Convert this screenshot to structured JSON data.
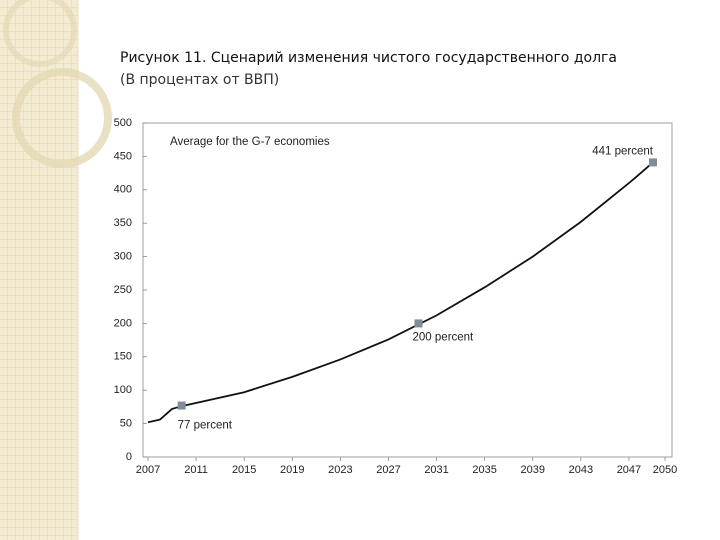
{
  "chart_data": {
    "type": "line",
    "title": "Рисунок 11. Сценарий изменения чистого государственного долга",
    "subtitle": "(В процентах от ВВП)",
    "annotation": "Average for the G-7 economies",
    "x": [
      2007,
      2008,
      2009,
      2010,
      2015,
      2019,
      2023,
      2027,
      2031,
      2035,
      2039,
      2043,
      2047,
      2049
    ],
    "values": [
      52,
      56,
      72,
      77,
      97,
      120,
      146,
      176,
      212,
      254,
      300,
      352,
      410,
      441
    ],
    "color": "#111111",
    "markers": {
      "x": [
        2009.8,
        2029.5,
        2049
      ],
      "values": [
        77,
        200,
        441
      ],
      "value_labels": [
        "77 percent",
        "200 percent",
        "441 percent"
      ],
      "color": "#7f8c99"
    },
    "xlim": [
      2007,
      2050
    ],
    "xticks": [
      2007,
      2011,
      2015,
      2019,
      2023,
      2027,
      2031,
      2035,
      2039,
      2043,
      2047,
      2050
    ],
    "ylim": [
      0,
      500
    ],
    "yticks": [
      0,
      50,
      100,
      150,
      200,
      250,
      300,
      350,
      400,
      450,
      500
    ]
  }
}
